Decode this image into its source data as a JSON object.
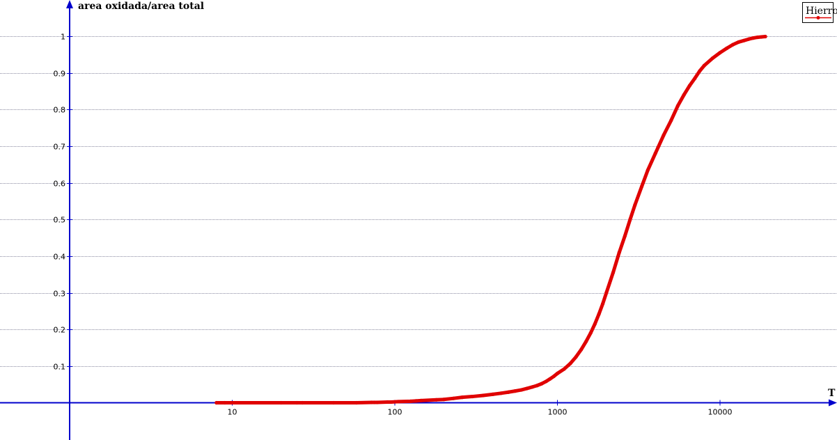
{
  "chart_data": {
    "type": "scatter",
    "title": "",
    "xlabel": "T",
    "ylabel": "area oxidada/area total",
    "xscale": "log",
    "xlim": [
      1,
      40000
    ],
    "ylim": [
      -0.1,
      1.1
    ],
    "x_ticks": [
      10,
      100,
      1000,
      10000
    ],
    "x_tick_labels": [
      "10",
      "100",
      "1000",
      "10000"
    ],
    "y_ticks": [
      0.1,
      0.2,
      0.3,
      0.4,
      0.5,
      0.6,
      0.7,
      0.8,
      0.9,
      1
    ],
    "y_tick_labels": [
      "0.1",
      "0.2",
      "0.3",
      "0.4",
      "0.5",
      "0.6",
      "0.7",
      "0.8",
      "0.9",
      "1"
    ],
    "grid": "horizontal dotted",
    "legend": "top-right",
    "colors": {
      "axes": "#0000cc",
      "series": "#e00000",
      "grid": "#8a8aa0"
    },
    "series": [
      {
        "name": "Hierro",
        "points": [
          [
            8,
            0
          ],
          [
            9,
            0
          ],
          [
            20,
            0
          ],
          [
            25,
            0
          ],
          [
            27,
            0
          ],
          [
            42,
            0
          ],
          [
            58,
            0
          ],
          [
            72,
            0.001
          ],
          [
            75,
            0.001
          ],
          [
            78,
            0.001
          ],
          [
            90,
            0.002
          ],
          [
            95,
            0.002
          ],
          [
            105,
            0.003
          ],
          [
            125,
            0.004
          ],
          [
            135,
            0.005
          ],
          [
            145,
            0.006
          ],
          [
            180,
            0.008
          ],
          [
            200,
            0.009
          ],
          [
            230,
            0.012
          ],
          [
            260,
            0.015
          ],
          [
            300,
            0.017
          ],
          [
            350,
            0.02
          ],
          [
            400,
            0.023
          ],
          [
            450,
            0.026
          ],
          [
            500,
            0.029
          ],
          [
            550,
            0.032
          ],
          [
            600,
            0.035
          ],
          [
            650,
            0.039
          ],
          [
            700,
            0.043
          ],
          [
            750,
            0.047
          ],
          [
            800,
            0.052
          ],
          [
            850,
            0.058
          ],
          [
            900,
            0.065
          ],
          [
            950,
            0.072
          ],
          [
            1000,
            0.08
          ],
          [
            1100,
            0.092
          ],
          [
            1200,
            0.107
          ],
          [
            1300,
            0.125
          ],
          [
            1400,
            0.145
          ],
          [
            1500,
            0.167
          ],
          [
            1600,
            0.19
          ],
          [
            1700,
            0.215
          ],
          [
            1800,
            0.242
          ],
          [
            1900,
            0.27
          ],
          [
            2000,
            0.3
          ],
          [
            2200,
            0.355
          ],
          [
            2400,
            0.41
          ],
          [
            2600,
            0.455
          ],
          [
            2800,
            0.5
          ],
          [
            3000,
            0.54
          ],
          [
            3300,
            0.59
          ],
          [
            3600,
            0.635
          ],
          [
            4000,
            0.68
          ],
          [
            4500,
            0.73
          ],
          [
            5000,
            0.77
          ],
          [
            5500,
            0.81
          ],
          [
            6000,
            0.84
          ],
          [
            6500,
            0.865
          ],
          [
            7000,
            0.885
          ],
          [
            7500,
            0.905
          ],
          [
            8000,
            0.92
          ],
          [
            9000,
            0.94
          ],
          [
            10000,
            0.955
          ],
          [
            11000,
            0.967
          ],
          [
            12000,
            0.977
          ],
          [
            13000,
            0.984
          ],
          [
            14000,
            0.988
          ],
          [
            15000,
            0.992
          ],
          [
            16000,
            0.995
          ],
          [
            17000,
            0.997
          ],
          [
            18000,
            0.998
          ],
          [
            19000,
            0.999
          ]
        ]
      }
    ]
  }
}
